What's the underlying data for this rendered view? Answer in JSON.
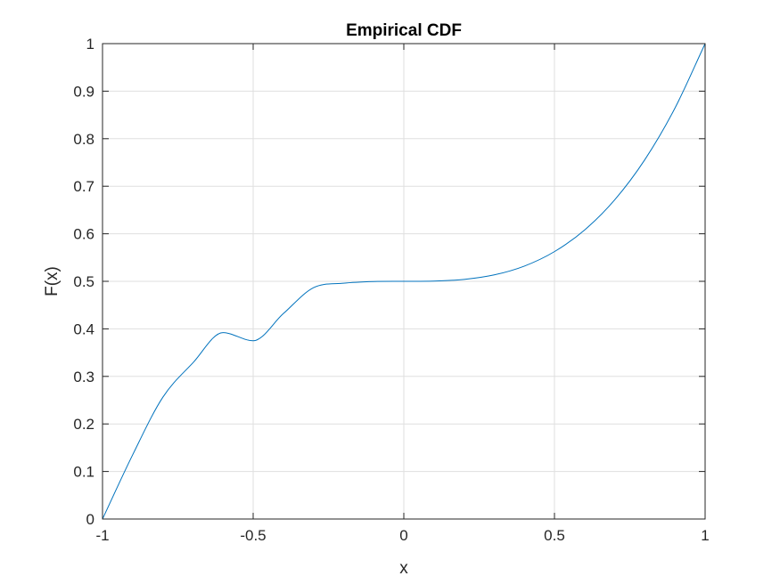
{
  "chart_data": {
    "type": "line",
    "title": "Empirical CDF",
    "xlabel": "x",
    "ylabel": "F(x)",
    "xlim": [
      -1,
      1
    ],
    "ylim": [
      0,
      1
    ],
    "xticks": [
      "-1",
      "-0.5",
      "0",
      "0.5",
      "1"
    ],
    "yticks": [
      "0",
      "0.1",
      "0.2",
      "0.3",
      "0.4",
      "0.5",
      "0.6",
      "0.7",
      "0.8",
      "0.9",
      "1"
    ],
    "grid": true,
    "legend": "none",
    "series": [
      {
        "color": "#0072BD",
        "x": [
          -1,
          -0.9,
          -0.8,
          -0.7,
          -0.6,
          -0.5,
          -0.4,
          -0.3,
          -0.2,
          -0.1,
          0,
          0.1,
          0.2,
          0.3,
          0.4,
          0.5,
          0.6,
          0.7,
          0.8,
          0.9,
          1
        ],
        "y": [
          0,
          0.135,
          0.256,
          0.3285,
          0.392,
          0.375,
          0.432,
          0.4865,
          0.496,
          0.4995,
          0.5,
          0.5005,
          0.504,
          0.5135,
          0.532,
          0.5625,
          0.608,
          0.6715,
          0.756,
          0.8645,
          1
        ]
      }
    ]
  },
  "colors": {
    "axis": "#262626",
    "grid": "#dfdfdf",
    "line": "#0072BD"
  }
}
